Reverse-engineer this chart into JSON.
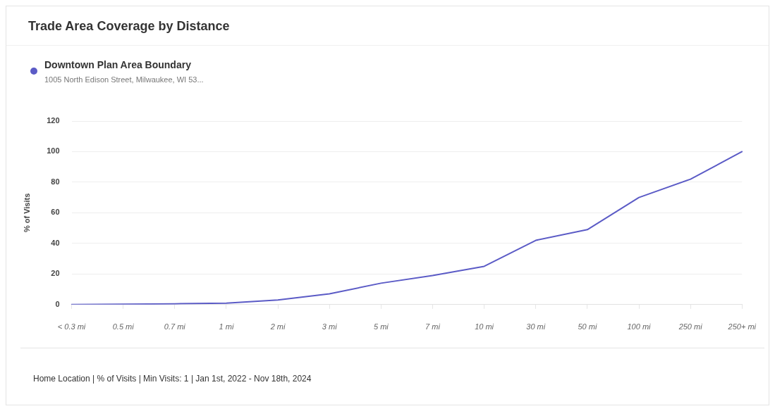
{
  "chart_data": {
    "type": "line",
    "title": "Trade Area Coverage by Distance",
    "subtitle": "1005 North Edison Street, Milwaukee, WI 53...",
    "ylabel": "% of Visits",
    "categories": [
      "< 0.3 mi",
      "0.5 mi",
      "0.7 mi",
      "1 mi",
      "2 mi",
      "3 mi",
      "5 mi",
      "7 mi",
      "10 mi",
      "30 mi",
      "50 mi",
      "100 mi",
      "250 mi",
      "250+ mi"
    ],
    "series": [
      {
        "name": "Downtown Plan Area Boundary",
        "color": "#5b5bc6",
        "values": [
          0,
          0.2,
          0.5,
          1,
          3,
          7,
          14,
          19,
          25,
          42,
          49,
          70,
          82,
          100
        ]
      }
    ],
    "ylim": [
      0,
      120
    ],
    "yticks": [
      0,
      20,
      40,
      60,
      80,
      100,
      120
    ],
    "grid": "y",
    "legend": "top left",
    "marker": "none",
    "line_style": "solid",
    "annotations": [
      "Home Location | % of Visits | Min Visits: 1 | Jan 1st, 2022 - Nov 18th, 2024"
    ]
  }
}
